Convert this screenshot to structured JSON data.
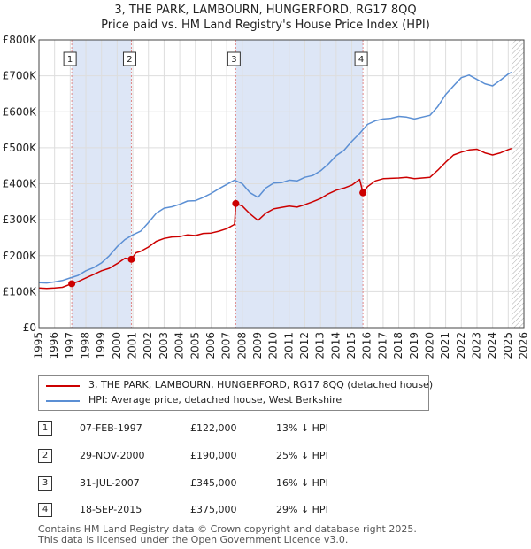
{
  "title_line1": "3, THE PARK, LAMBOURN, HUNGERFORD, RG17 8QQ",
  "title_line2": "Price paid vs. HM Land Registry's House Price Index (HPI)",
  "colors": {
    "property": "#cc0000",
    "hpi": "#5b8fd4",
    "shade": "#dde6f6",
    "grid": "#dddddd",
    "vline": "#e08888"
  },
  "legend": {
    "property": "3, THE PARK, LAMBOURN, HUNGERFORD, RG17 8QQ (detached house)",
    "hpi": "HPI: Average price, detached house, West Berkshire"
  },
  "transactions": [
    {
      "num": "1",
      "date": "07-FEB-1997",
      "price": "£122,000",
      "hpi": "13% ↓ HPI",
      "t": 1997.1,
      "v": 122000
    },
    {
      "num": "2",
      "date": "29-NOV-2000",
      "price": "£190,000",
      "hpi": "25% ↓ HPI",
      "t": 2000.91,
      "v": 190000
    },
    {
      "num": "3",
      "date": "31-JUL-2007",
      "price": "£345,000",
      "hpi": "16% ↓ HPI",
      "t": 2007.58,
      "v": 345000
    },
    {
      "num": "4",
      "date": "18-SEP-2015",
      "price": "£375,000",
      "hpi": "29% ↓ HPI",
      "t": 2015.71,
      "v": 375000
    }
  ],
  "footer_line1": "Contains HM Land Registry data © Crown copyright and database right 2025.",
  "footer_line2": "This data is licensed under the Open Government Licence v3.0.",
  "chart_data": {
    "type": "line",
    "title": "3, THE PARK, LAMBOURN, HUNGERFORD, RG17 8QQ — Price paid vs. HM Land Registry's House Price Index (HPI)",
    "xlim": [
      1995,
      2026
    ],
    "ylim": [
      0,
      800000
    ],
    "x_ticks": [
      1995,
      1996,
      1997,
      1998,
      1999,
      2000,
      2001,
      2002,
      2003,
      2004,
      2005,
      2006,
      2007,
      2008,
      2009,
      2010,
      2011,
      2012,
      2013,
      2014,
      2015,
      2016,
      2017,
      2018,
      2019,
      2020,
      2021,
      2022,
      2023,
      2024,
      2025,
      2026
    ],
    "y_ticks": [
      {
        "v": 0,
        "label": "£0"
      },
      {
        "v": 100000,
        "label": "£100K"
      },
      {
        "v": 200000,
        "label": "£200K"
      },
      {
        "v": 300000,
        "label": "£300K"
      },
      {
        "v": 400000,
        "label": "£400K"
      },
      {
        "v": 500000,
        "label": "£500K"
      },
      {
        "v": 600000,
        "label": "£600K"
      },
      {
        "v": 700000,
        "label": "£700K"
      },
      {
        "v": 800000,
        "label": "£800K"
      }
    ],
    "shaded_periods": [
      [
        1997.1,
        2000.91
      ],
      [
        2007.58,
        2015.71
      ]
    ],
    "hatch_from": 2025.2,
    "series": [
      {
        "name": "HPI: Average price, detached house, West Berkshire",
        "x": [
          1995,
          1995.5,
          1996,
          1996.5,
          1997,
          1997.5,
          1998,
          1998.5,
          1999,
          1999.5,
          2000,
          2000.5,
          2001,
          2001.5,
          2002,
          2002.5,
          2003,
          2003.5,
          2004,
          2004.5,
          2005,
          2005.5,
          2006,
          2006.5,
          2007,
          2007.5,
          2008,
          2008.5,
          2009,
          2009.5,
          2010,
          2010.5,
          2011,
          2011.5,
          2012,
          2012.5,
          2013,
          2013.5,
          2014,
          2014.5,
          2015,
          2015.5,
          2016,
          2016.5,
          2017,
          2017.5,
          2018,
          2018.5,
          2019,
          2019.5,
          2020,
          2020.5,
          2021,
          2021.5,
          2022,
          2022.5,
          2023,
          2023.5,
          2024,
          2024.5,
          2025,
          2025.2
        ],
        "values": [
          125000,
          124000,
          127000,
          131000,
          138000,
          145000,
          158000,
          167000,
          180000,
          200000,
          225000,
          245000,
          258000,
          268000,
          292000,
          318000,
          332000,
          336000,
          343000,
          352000,
          353000,
          362000,
          373000,
          386000,
          398000,
          410000,
          400000,
          375000,
          362000,
          388000,
          402000,
          403000,
          410000,
          408000,
          418000,
          423000,
          436000,
          455000,
          478000,
          493000,
          518000,
          540000,
          565000,
          575000,
          580000,
          582000,
          587000,
          585000,
          580000,
          585000,
          590000,
          615000,
          648000,
          672000,
          695000,
          702000,
          690000,
          678000,
          672000,
          688000,
          705000,
          710000
        ]
      },
      {
        "name": "3, THE PARK, LAMBOURN, HUNGERFORD, RG17 8QQ (detached house)",
        "x": [
          1995,
          1995.5,
          1996,
          1996.5,
          1997.1,
          1997.5,
          1998,
          1998.5,
          1999,
          1999.5,
          2000,
          2000.5,
          2000.91,
          2001.2,
          2001.5,
          2002,
          2002.5,
          2003,
          2003.5,
          2004,
          2004.5,
          2005,
          2005.5,
          2006,
          2006.5,
          2007,
          2007.5,
          2007.58,
          2008,
          2008.5,
          2009,
          2009.5,
          2010,
          2010.5,
          2011,
          2011.5,
          2012,
          2012.5,
          2013,
          2013.5,
          2014,
          2014.5,
          2015,
          2015.5,
          2015.71,
          2016,
          2016.5,
          2017,
          2017.5,
          2018,
          2018.5,
          2019,
          2019.5,
          2020,
          2020.5,
          2021,
          2021.5,
          2022,
          2022.5,
          2023,
          2023.5,
          2024,
          2024.5,
          2025,
          2025.2
        ],
        "values": [
          110000,
          109000,
          110000,
          112000,
          122000,
          128000,
          138000,
          148000,
          158000,
          165000,
          178000,
          193000,
          190000,
          208000,
          212000,
          224000,
          240000,
          248000,
          252000,
          253000,
          258000,
          256000,
          262000,
          263000,
          268000,
          275000,
          287000,
          345000,
          338000,
          316000,
          298000,
          318000,
          330000,
          334000,
          338000,
          335000,
          342000,
          350000,
          359000,
          372000,
          382000,
          388000,
          396000,
          412000,
          375000,
          392000,
          408000,
          414000,
          415000,
          416000,
          418000,
          414000,
          416000,
          418000,
          438000,
          460000,
          480000,
          488000,
          494000,
          496000,
          486000,
          480000,
          486000,
          495000,
          498000
        ]
      }
    ]
  }
}
